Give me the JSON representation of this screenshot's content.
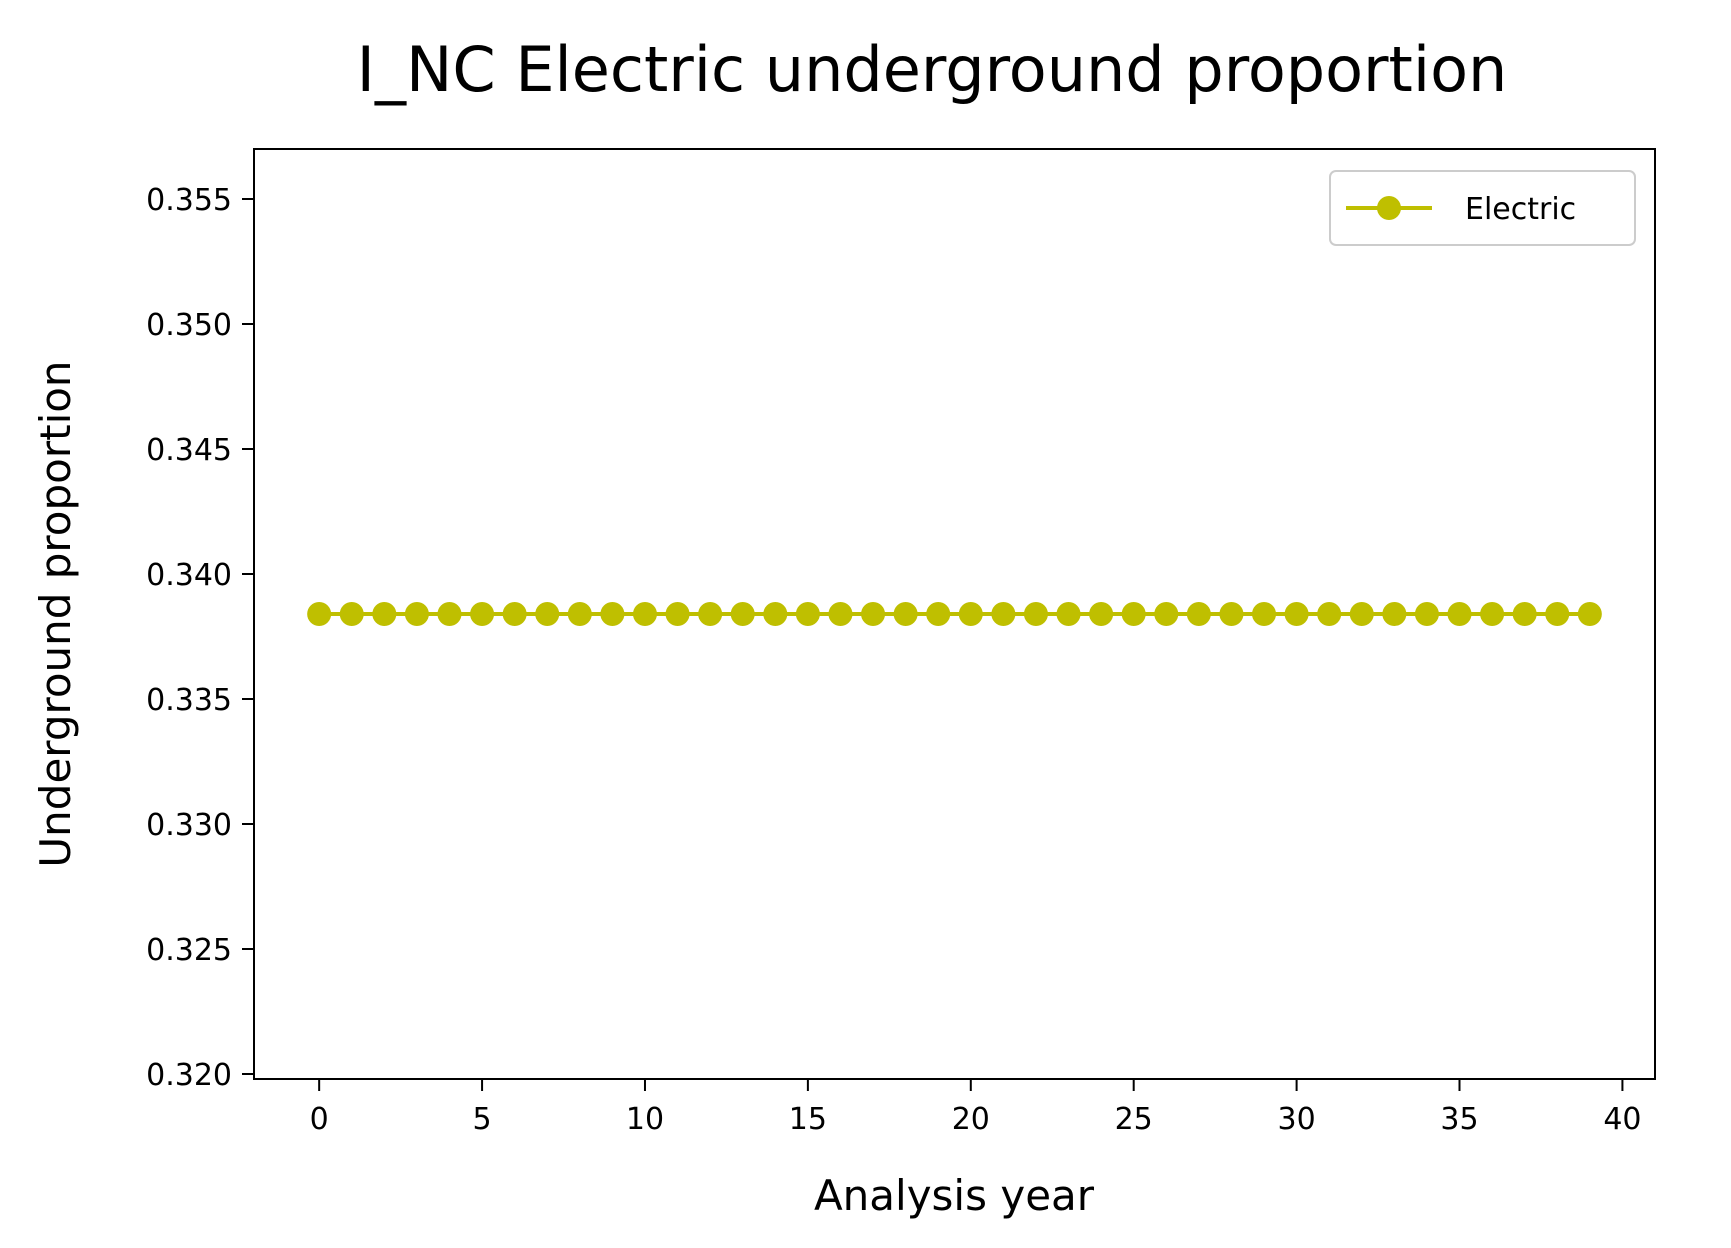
{
  "chart_data": {
    "type": "line",
    "title": "I_NC Electric underground proportion",
    "xlabel": "Analysis year",
    "ylabel": "Underground proportion",
    "xlim": [
      -2,
      41
    ],
    "ylim": [
      0.3198,
      0.357
    ],
    "xticks": [
      0,
      5,
      10,
      15,
      20,
      25,
      30,
      35,
      40
    ],
    "xtick_labels": [
      "0",
      "5",
      "10",
      "15",
      "20",
      "25",
      "30",
      "35",
      "40"
    ],
    "yticks": [
      0.32,
      0.325,
      0.33,
      0.335,
      0.34,
      0.345,
      0.35,
      0.355
    ],
    "ytick_labels": [
      "0.320",
      "0.325",
      "0.330",
      "0.335",
      "0.340",
      "0.345",
      "0.350",
      "0.355"
    ],
    "grid": false,
    "legend_position": "top-right",
    "series": [
      {
        "name": "Electric",
        "color": "#bfbf00",
        "marker": "circle",
        "x": [
          0,
          1,
          2,
          3,
          4,
          5,
          6,
          7,
          8,
          9,
          10,
          11,
          12,
          13,
          14,
          15,
          16,
          17,
          18,
          19,
          20,
          21,
          22,
          23,
          24,
          25,
          26,
          27,
          28,
          29,
          30,
          31,
          32,
          33,
          34,
          35,
          36,
          37,
          38,
          39
        ],
        "y": [
          0.3384,
          0.3384,
          0.3384,
          0.3384,
          0.3384,
          0.3384,
          0.3384,
          0.3384,
          0.3384,
          0.3384,
          0.3384,
          0.3384,
          0.3384,
          0.3384,
          0.3384,
          0.3384,
          0.3384,
          0.3384,
          0.3384,
          0.3384,
          0.3384,
          0.3384,
          0.3384,
          0.3384,
          0.3384,
          0.3384,
          0.3384,
          0.3384,
          0.3384,
          0.3384,
          0.3384,
          0.3384,
          0.3384,
          0.3384,
          0.3384,
          0.3384,
          0.3384,
          0.3384,
          0.3384,
          0.3384
        ]
      }
    ]
  }
}
